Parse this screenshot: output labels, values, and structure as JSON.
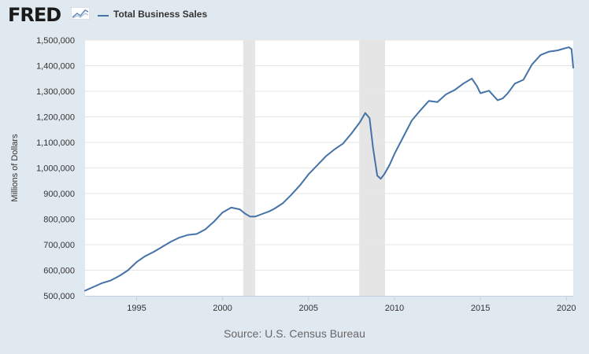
{
  "header": {
    "logo_text": "FRED",
    "logo_icon": "fred-graph-icon"
  },
  "footer": {
    "source": "Source: U.S. Census Bureau"
  },
  "chart_data": {
    "type": "line",
    "xlabel": "",
    "ylabel": "Millions of Dollars",
    "xlim": [
      1992.0,
      2020.4
    ],
    "ylim": [
      500000,
      1500000
    ],
    "grid": "horizontal",
    "legend_position": "top-left",
    "x_ticks": [
      1995,
      2000,
      2005,
      2010,
      2015,
      2020
    ],
    "y_ticks": [
      500000,
      600000,
      700000,
      800000,
      900000,
      1000000,
      1100000,
      1200000,
      1300000,
      1400000,
      1500000
    ],
    "y_tick_labels": [
      "500,000",
      "600,000",
      "700,000",
      "800,000",
      "900,000",
      "1,000,000",
      "1,100,000",
      "1,200,000",
      "1,300,000",
      "1,400,000",
      "1,500,000"
    ],
    "recessions": [
      [
        2001.2,
        2001.9
      ],
      [
        2007.95,
        2009.45
      ]
    ],
    "series": [
      {
        "name": "Total Business Sales",
        "color": "#4572a7",
        "x": [
          1992.0,
          1992.5,
          1993.0,
          1993.5,
          1994.0,
          1994.5,
          1995.0,
          1995.5,
          1996.0,
          1996.5,
          1997.0,
          1997.5,
          1998.0,
          1998.5,
          1999.0,
          1999.5,
          2000.0,
          2000.5,
          2001.0,
          2001.3,
          2001.6,
          2001.9,
          2002.3,
          2002.7,
          2003.0,
          2003.5,
          2004.0,
          2004.5,
          2005.0,
          2005.5,
          2006.0,
          2006.5,
          2007.0,
          2007.5,
          2008.0,
          2008.3,
          2008.55,
          2008.75,
          2009.0,
          2009.2,
          2009.4,
          2009.7,
          2010.0,
          2010.5,
          2011.0,
          2011.5,
          2012.0,
          2012.5,
          2013.0,
          2013.5,
          2014.0,
          2014.5,
          2014.8,
          2015.0,
          2015.5,
          2016.0,
          2016.3,
          2016.6,
          2017.0,
          2017.5,
          2018.0,
          2018.5,
          2019.0,
          2019.5,
          2020.0,
          2020.15,
          2020.3,
          2020.4
        ],
        "values": [
          520000,
          535000,
          550000,
          560000,
          578000,
          600000,
          632000,
          655000,
          672000,
          692000,
          712000,
          728000,
          738000,
          742000,
          760000,
          790000,
          826000,
          845000,
          838000,
          822000,
          810000,
          810000,
          820000,
          830000,
          840000,
          862000,
          895000,
          932000,
          975000,
          1010000,
          1045000,
          1072000,
          1095000,
          1135000,
          1180000,
          1215000,
          1195000,
          1080000,
          970000,
          958000,
          975000,
          1010000,
          1055000,
          1120000,
          1185000,
          1225000,
          1262000,
          1258000,
          1288000,
          1305000,
          1330000,
          1350000,
          1320000,
          1292000,
          1302000,
          1265000,
          1272000,
          1293000,
          1330000,
          1345000,
          1405000,
          1442000,
          1455000,
          1460000,
          1470000,
          1472000,
          1465000,
          1392000
        ]
      }
    ]
  }
}
